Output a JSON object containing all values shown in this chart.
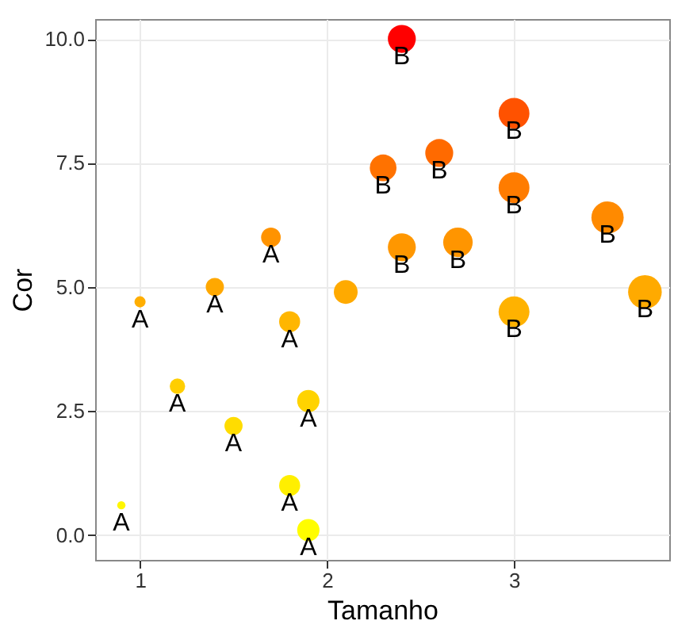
{
  "chart_data": {
    "type": "bubble",
    "xlabel": "Tamanho",
    "ylabel": "Cor",
    "x": [
      0.9,
      1.0,
      1.2,
      1.4,
      1.5,
      1.7,
      1.8,
      1.8,
      1.9,
      1.9,
      2.1,
      2.3,
      2.4,
      2.4,
      2.6,
      2.7,
      3.0,
      3.0,
      3.0,
      3.5,
      3.7
    ],
    "values": [
      0.6,
      4.7,
      3.0,
      5.0,
      2.2,
      6.0,
      4.3,
      1.0,
      2.7,
      0.1,
      4.9,
      7.4,
      10.0,
      5.8,
      7.7,
      5.9,
      8.5,
      7.0,
      4.5,
      6.4,
      4.9
    ],
    "sizes": [
      0.06,
      0.11,
      0.21,
      0.29,
      0.29,
      0.34,
      0.39,
      0.39,
      0.44,
      0.44,
      0.5,
      0.63,
      0.69,
      0.69,
      0.69,
      0.77,
      0.84,
      0.84,
      0.84,
      0.92,
      1
    ],
    "colors": [
      "#fff600",
      "#ffae00",
      "#ffce00",
      "#ffa800",
      "#ffdc00",
      "#ff9300",
      "#ffb600",
      "#ffef00",
      "#ffd300",
      "#fffd00",
      "#ffaa00",
      "#ff7200",
      "#ff0000",
      "#ff9700",
      "#ff6a00",
      "#ff9500",
      "#ff5200",
      "#ff7c00",
      "#ffb200",
      "#ff8a00",
      "#ffaa00"
    ],
    "value_labels": [
      "A",
      "A",
      "A",
      "A",
      "A",
      "A",
      "A",
      "A",
      "A",
      "A",
      null,
      "B",
      "B",
      "B",
      "B",
      "B",
      "B",
      "B",
      "B",
      "B",
      "B"
    ],
    "xlim": [
      0.76,
      3.83
    ],
    "xticks": [
      1,
      2,
      3
    ],
    "ylim": [
      -0.5,
      10.4
    ],
    "yticks": [
      {
        "value": 0,
        "label": "0.0"
      },
      {
        "value": 2.5,
        "label": "2.5"
      },
      {
        "value": 5,
        "label": "5.0"
      },
      {
        "value": 7.5,
        "label": "7.5"
      },
      {
        "value": 10,
        "label": "10.0"
      }
    ],
    "grid": true
  }
}
